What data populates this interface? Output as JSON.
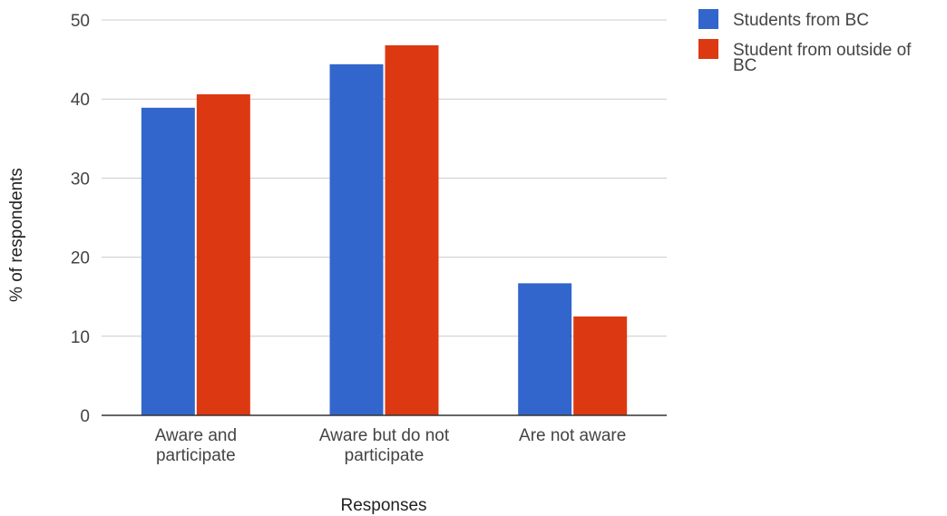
{
  "chart_data": {
    "type": "bar",
    "categories": [
      [
        "Aware and",
        "participate"
      ],
      [
        "Aware but do not",
        "participate"
      ],
      [
        "Are not aware"
      ]
    ],
    "series": [
      {
        "name": "Students from BC",
        "values": [
          38.9,
          44.4,
          16.7
        ],
        "color": "#3366cc"
      },
      {
        "name": "Student from outside of BC",
        "values": [
          40.6,
          46.8,
          12.5
        ],
        "color": "#dc3912"
      }
    ],
    "xlabel": "Responses",
    "ylabel": "% of respondents",
    "ylim": [
      0,
      50
    ],
    "yticks": [
      0,
      10,
      20,
      30,
      40,
      50
    ],
    "grid": true,
    "legend_position": "right",
    "legend_labels": [
      [
        "Students from BC"
      ],
      [
        "Student from outside of",
        "BC"
      ]
    ]
  }
}
